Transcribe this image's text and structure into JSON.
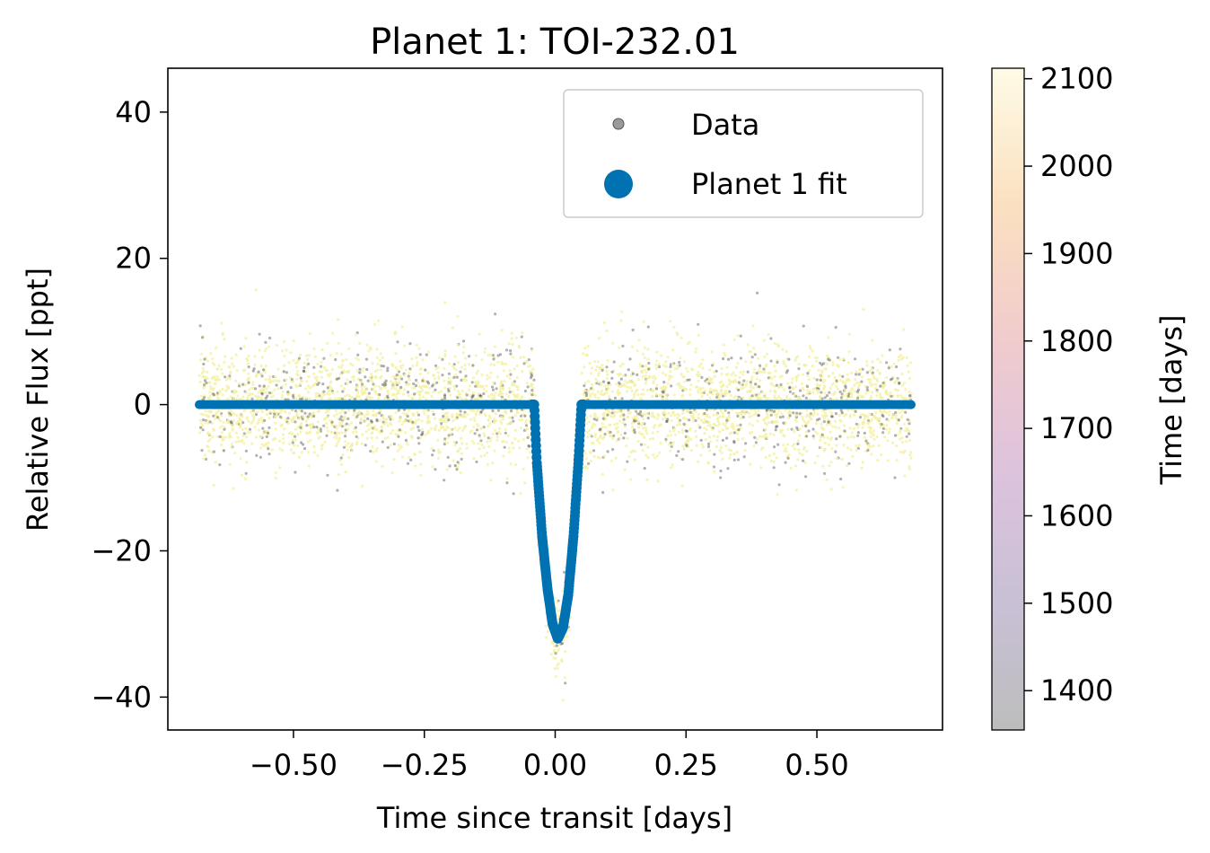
{
  "chart_data": {
    "type": "scatter",
    "title": "Planet 1: TOI-232.01",
    "xlabel": "Time since transit [days]",
    "ylabel": "Relative Flux [ppt]",
    "xlim": [
      -0.74,
      0.74
    ],
    "ylim": [
      -44.5,
      46
    ],
    "xticks": [
      -0.5,
      -0.25,
      0.0,
      0.25,
      0.5
    ],
    "xtick_labels": [
      "−0.50",
      "−0.25",
      "0.00",
      "0.25",
      "0.50"
    ],
    "yticks": [
      -40,
      -20,
      0,
      20,
      40
    ],
    "ytick_labels": [
      "−40",
      "−20",
      "0",
      "20",
      "40"
    ],
    "grid": false,
    "legend_position": "upper right",
    "legend": [
      {
        "label": "Data",
        "marker": "small gray dot"
      },
      {
        "label": "Planet 1 fit",
        "marker": "large blue dot"
      }
    ],
    "colorbar": {
      "label": "Time [days]",
      "range": [
        1355,
        2112
      ],
      "ticks": [
        1400,
        1500,
        1600,
        1700,
        1800,
        1900,
        2000,
        2100
      ],
      "tick_labels": [
        "1400",
        "1500",
        "1600",
        "1700",
        "1800",
        "1900",
        "2000",
        "2100"
      ],
      "colormap": "magma (alpha 0.25)"
    },
    "series": [
      {
        "name": "Data",
        "color_by": "time",
        "x_range": [
          -0.68,
          0.68
        ],
        "out_of_transit_flux": 0,
        "out_of_transit_scatter": 4,
        "transit_window": [
          -0.04,
          0.05
        ],
        "transit_min_flux": -32
      },
      {
        "name": "Planet 1 fit",
        "color": "#0072b2",
        "points": [
          [
            -0.68,
            0
          ],
          [
            -0.04,
            0
          ],
          [
            -0.035,
            -8
          ],
          [
            -0.025,
            -18
          ],
          [
            -0.015,
            -25
          ],
          [
            -0.005,
            -30
          ],
          [
            0.005,
            -32
          ],
          [
            0.015,
            -30.5
          ],
          [
            0.025,
            -26
          ],
          [
            0.035,
            -18
          ],
          [
            0.045,
            -7
          ],
          [
            0.05,
            0
          ],
          [
            0.68,
            0
          ]
        ]
      }
    ]
  },
  "colors": {
    "fit": "#0072b2",
    "data_recent": "#f4f0a0",
    "data_old": "#222222",
    "legend_marker": "#9a9a9a"
  }
}
